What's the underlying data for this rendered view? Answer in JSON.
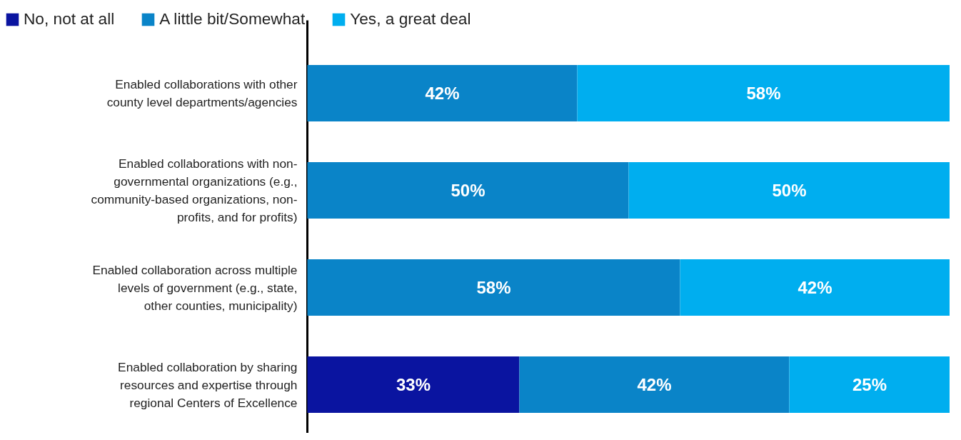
{
  "chart_data": {
    "type": "bar",
    "orientation": "horizontal",
    "stacked": true,
    "categories": [
      "Enabled collaborations with other county level departments/agencies",
      "Enabled collaborations with non-governmental organizations (e.g., community-based organizations, non-profits, and for profits)",
      "Enabled collaboration across multiple levels of government (e.g., state, other counties, municipality)",
      "Enabled collaboration by sharing resources and expertise through regional Centers of Excellence"
    ],
    "series": [
      {
        "name": "No, not at all",
        "color": "#0a14a0",
        "values": [
          null,
          null,
          null,
          33
        ],
        "value_labels": [
          null,
          null,
          null,
          "33%"
        ]
      },
      {
        "name": "A little bit/Somewhat",
        "color": "#0a84c8",
        "values": [
          42,
          50,
          58,
          42
        ],
        "value_labels": [
          "42%",
          "50%",
          "58%",
          "42%"
        ]
      },
      {
        "name": "Yes, a great deal",
        "color": "#00aeef",
        "values": [
          58,
          50,
          42,
          25
        ],
        "value_labels": [
          "58%",
          "50%",
          "42%",
          "25%"
        ]
      }
    ],
    "xlim": [
      0,
      100
    ],
    "tick_labels": "y",
    "grid": false,
    "legend": "top left"
  }
}
